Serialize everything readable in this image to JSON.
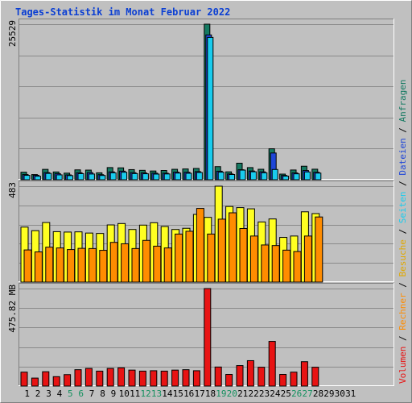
{
  "title": "Tages-Statistik im Monat Februar 2022",
  "colors": {
    "title": "#0b3fd3",
    "background": "#c0c0c0",
    "frame_light": "#ffffff",
    "frame_dark": "#7f7f7f",
    "anfragen": "#157a62",
    "dateien": "#1f46d8",
    "seiten": "#19ccee",
    "besuche": "#ffff22",
    "rechner": "#ff8c00",
    "volumen": "#e81313",
    "weekend_label": "#15905f",
    "weekday_label": "#000000"
  },
  "legend": {
    "separator": " / ",
    "items": [
      {
        "key": "volumen",
        "label": "Volumen",
        "color": "#e81313"
      },
      {
        "key": "rechner",
        "label": "Rechner",
        "color": "#ff8c00"
      },
      {
        "key": "besuche",
        "label": "Besuche",
        "color": "#e0a800"
      },
      {
        "key": "seiten",
        "label": "Seiten",
        "color": "#19ccee"
      },
      {
        "key": "dateien",
        "label": "Dateien",
        "color": "#1f46d8"
      },
      {
        "key": "anfragen",
        "label": "Anfragen",
        "color": "#157a62"
      }
    ]
  },
  "chart_data": {
    "type": "bar",
    "title": "Tages-Statistik im Monat Februar 2022",
    "categories": [
      "1",
      "2",
      "3",
      "4",
      "5",
      "6",
      "7",
      "8",
      "9",
      "10",
      "11",
      "12",
      "13",
      "14",
      "15",
      "16",
      "17",
      "18",
      "19",
      "20",
      "21",
      "22",
      "23",
      "24",
      "25",
      "26",
      "27",
      "28",
      "29",
      "30",
      "31"
    ],
    "weekend_days": [
      5,
      6,
      12,
      13,
      19,
      20,
      26,
      27
    ],
    "days_with_data": 28,
    "panels": [
      {
        "name": "top",
        "axis_label": "25529",
        "ylim": [
          0,
          25529
        ],
        "series": [
          {
            "name": "Anfragen",
            "color": "#157a62",
            "values": [
              1234,
              849,
              1701,
              1280,
              1081,
              1620,
              1581,
              1136,
              1996,
              1952,
              1660,
              1544,
              1436,
              1518,
              1713,
              1769,
              1852,
              25529,
              2152,
              1298,
              2714,
              1995,
              1719,
              5082,
              926,
              1599,
              2218,
              1729
            ]
          },
          {
            "name": "Dateien",
            "color": "#1f46d8",
            "values": [
              850,
              740,
              1170,
              1000,
              790,
              1150,
              1170,
              830,
              1290,
              1410,
              1160,
              1120,
              1080,
              1070,
              1250,
              1230,
              1330,
              23770,
              1400,
              950,
              1640,
              1430,
              1300,
              4390,
              700,
              1120,
              1510,
              1230
            ]
          },
          {
            "name": "Seiten",
            "color": "#19ccee",
            "values": [
              720,
              580,
              1040,
              800,
              680,
              1000,
              940,
              700,
              1140,
              1230,
              1010,
              980,
              930,
              950,
              1090,
              1060,
              1190,
              23360,
              1240,
              860,
              1580,
              1310,
              1140,
              1680,
              600,
              970,
              1280,
              1090
            ]
          }
        ]
      },
      {
        "name": "middle",
        "axis_label": "483",
        "ylim": [
          0,
          483
        ],
        "series": [
          {
            "name": "Besuche",
            "color": "#ffff22",
            "values": [
              277,
              259,
              300,
              254,
              252,
              253,
              247,
              245,
              288,
              295,
              265,
              287,
              299,
              280,
              265,
              271,
              341,
              326,
              483,
              381,
              375,
              369,
              303,
              318,
              225,
              232,
              354,
              345
            ]
          },
          {
            "name": "Rechner",
            "color": "#ff8c00",
            "values": [
              162,
              152,
              176,
              172,
              164,
              170,
              169,
              160,
              200,
              193,
              169,
              210,
              181,
              172,
              242,
              256,
              371,
              242,
              317,
              349,
              270,
              232,
              187,
              184,
              161,
              154,
              232,
              328
            ]
          }
        ]
      },
      {
        "name": "bottom",
        "axis_label": "475.82 MB",
        "ylim": [
          0,
          475.82
        ],
        "series": [
          {
            "name": "Volumen",
            "color": "#e81313",
            "values": [
              68,
              39,
              70,
              46,
              56,
              80,
              86,
              73,
              86,
              89,
              78,
              73,
              75,
              73,
              78,
              80,
              75,
              475.82,
              93,
              57,
              100,
              124,
              92,
              218,
              57,
              68,
              119,
              92
            ]
          }
        ]
      }
    ]
  }
}
